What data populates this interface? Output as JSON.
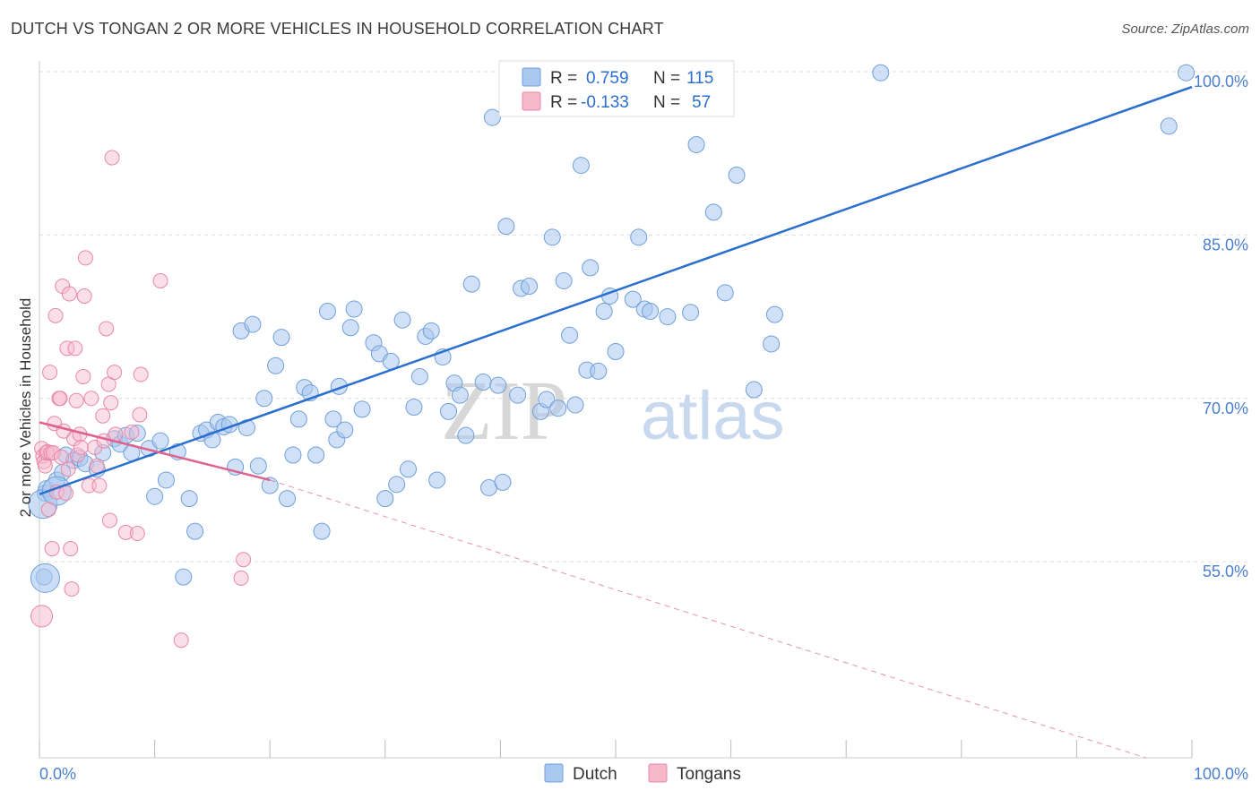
{
  "title": "DUTCH VS TONGAN 2 OR MORE VEHICLES IN HOUSEHOLD CORRELATION CHART",
  "source": "Source: ZipAtlas.com",
  "watermark": {
    "zip": "ZIP",
    "atlas": "atlas"
  },
  "colors": {
    "dutch_fill": "#a9c8f0",
    "dutch_stroke": "#6f9fd8",
    "dutch_line": "#2b6fce",
    "tongan_fill": "#f6b7cb",
    "tongan_stroke": "#e987a8",
    "tongan_line": "#e0608e",
    "tick_text": "#4a7fd0",
    "grid": "#dddddd"
  },
  "legend": {
    "rows": [
      {
        "r_label": "R =",
        "r_value": "0.759",
        "n_label": "N =",
        "n_value": "115"
      },
      {
        "r_label": "R =",
        "r_value": "-0.133",
        "n_label": "N =",
        "n_value": "57"
      }
    ]
  },
  "chart_data": {
    "type": "scatter",
    "title": "DUTCH VS TONGAN 2 OR MORE VEHICLES IN HOUSEHOLD CORRELATION CHART",
    "xlabel": "",
    "ylabel": "2 or more Vehicles in Household",
    "xlim": [
      0,
      100
    ],
    "ylim": [
      37,
      100
    ],
    "x_tick_labels": [
      "0.0%",
      "100.0%"
    ],
    "y_ticks": [
      55,
      70,
      85,
      100
    ],
    "y_tick_labels": [
      "55.0%",
      "70.0%",
      "85.0%",
      "100.0%"
    ],
    "grid": true,
    "series": [
      {
        "name": "Dutch",
        "r": 0.759,
        "n": 115,
        "trend": {
          "x": [
            0,
            100
          ],
          "y": [
            61.2,
            98.6
          ]
        },
        "points": [
          [
            0.5,
            61.3
          ],
          [
            0.6,
            61.7
          ],
          [
            0.4,
            53.6
          ],
          [
            1.5,
            62.5
          ],
          [
            2.0,
            63.2
          ],
          [
            2.3,
            64.8
          ],
          [
            3.0,
            64.3
          ],
          [
            3.5,
            64.5
          ],
          [
            4.0,
            64.0
          ],
          [
            5.0,
            63.5
          ],
          [
            5.5,
            65.0
          ],
          [
            6.5,
            66.3
          ],
          [
            7.0,
            65.8
          ],
          [
            7.5,
            66.6
          ],
          [
            8.0,
            65.0
          ],
          [
            8.5,
            66.8
          ],
          [
            9.5,
            65.4
          ],
          [
            10.0,
            61.0
          ],
          [
            10.5,
            66.1
          ],
          [
            11.0,
            62.5
          ],
          [
            12.0,
            65.1
          ],
          [
            12.5,
            53.6
          ],
          [
            13.0,
            60.8
          ],
          [
            13.5,
            57.8
          ],
          [
            14.0,
            66.8
          ],
          [
            14.5,
            67.1
          ],
          [
            15.0,
            66.2
          ],
          [
            15.5,
            67.8
          ],
          [
            16.0,
            67.4
          ],
          [
            16.5,
            67.6
          ],
          [
            17.0,
            63.7
          ],
          [
            17.5,
            76.2
          ],
          [
            18.0,
            67.3
          ],
          [
            18.5,
            76.8
          ],
          [
            19.0,
            63.8
          ],
          [
            19.5,
            70.0
          ],
          [
            20.0,
            62.0
          ],
          [
            20.5,
            73.0
          ],
          [
            21.0,
            75.6
          ],
          [
            21.5,
            60.8
          ],
          [
            22.0,
            64.8
          ],
          [
            22.5,
            68.1
          ],
          [
            23.0,
            71.0
          ],
          [
            23.5,
            70.5
          ],
          [
            24.0,
            64.8
          ],
          [
            24.5,
            57.8
          ],
          [
            25.0,
            78.0
          ],
          [
            25.5,
            68.1
          ],
          [
            25.8,
            66.2
          ],
          [
            26.0,
            71.1
          ],
          [
            26.5,
            67.1
          ],
          [
            27.0,
            76.5
          ],
          [
            27.3,
            78.2
          ],
          [
            28.0,
            69.0
          ],
          [
            29.0,
            75.1
          ],
          [
            29.5,
            74.1
          ],
          [
            30.0,
            60.8
          ],
          [
            30.5,
            73.4
          ],
          [
            31.0,
            62.1
          ],
          [
            31.5,
            77.2
          ],
          [
            32.0,
            63.5
          ],
          [
            32.5,
            69.2
          ],
          [
            33.0,
            72.0
          ],
          [
            33.5,
            75.7
          ],
          [
            34.0,
            76.2
          ],
          [
            34.5,
            62.5
          ],
          [
            35.0,
            73.8
          ],
          [
            35.5,
            68.8
          ],
          [
            36.0,
            71.4
          ],
          [
            36.5,
            70.3
          ],
          [
            37.0,
            66.6
          ],
          [
            37.5,
            80.5
          ],
          [
            38.5,
            71.5
          ],
          [
            39.0,
            61.8
          ],
          [
            39.3,
            95.8
          ],
          [
            39.8,
            71.2
          ],
          [
            40.2,
            62.3
          ],
          [
            40.5,
            85.8
          ],
          [
            41.5,
            70.3
          ],
          [
            41.8,
            80.1
          ],
          [
            42.5,
            80.3
          ],
          [
            43.5,
            68.8
          ],
          [
            44.0,
            69.9
          ],
          [
            44.5,
            84.8
          ],
          [
            45.0,
            69.1
          ],
          [
            45.5,
            80.8
          ],
          [
            46.0,
            75.8
          ],
          [
            46.5,
            69.4
          ],
          [
            47.0,
            91.4
          ],
          [
            47.5,
            72.6
          ],
          [
            47.8,
            82.0
          ],
          [
            48.5,
            72.5
          ],
          [
            49.0,
            78.0
          ],
          [
            49.5,
            79.4
          ],
          [
            50.0,
            74.3
          ],
          [
            51.5,
            79.1
          ],
          [
            52.0,
            84.8
          ],
          [
            52.5,
            78.2
          ],
          [
            53.0,
            78.0
          ],
          [
            54.5,
            77.5
          ],
          [
            56.5,
            77.9
          ],
          [
            57.0,
            93.3
          ],
          [
            58.5,
            87.1
          ],
          [
            59.5,
            79.7
          ],
          [
            60.5,
            90.5
          ],
          [
            62.0,
            70.8
          ],
          [
            63.5,
            75.0
          ],
          [
            63.8,
            77.7
          ],
          [
            73.0,
            99.9
          ],
          [
            98.0,
            95.0
          ],
          [
            99.5,
            99.9
          ]
        ],
        "big_points": [
          [
            0.5,
            53.5
          ],
          [
            0.3,
            60.3
          ],
          [
            1.5,
            61.5
          ]
        ]
      },
      {
        "name": "Tongans",
        "r": -0.133,
        "n": 57,
        "trend": {
          "x": [
            0,
            20
          ],
          "y": [
            67.8,
            62.5
          ]
        },
        "trend_dashed": {
          "x": [
            20,
            96
          ],
          "y": [
            62.5,
            37.0
          ]
        },
        "points": [
          [
            0.2,
            65.4
          ],
          [
            0.3,
            64.7
          ],
          [
            0.4,
            64.2
          ],
          [
            0.5,
            63.8
          ],
          [
            0.6,
            65.0
          ],
          [
            0.7,
            65.1
          ],
          [
            0.8,
            59.8
          ],
          [
            0.9,
            72.4
          ],
          [
            1.0,
            65.0
          ],
          [
            1.1,
            56.2
          ],
          [
            1.2,
            65.0
          ],
          [
            1.3,
            67.7
          ],
          [
            1.4,
            77.6
          ],
          [
            1.5,
            61.4
          ],
          [
            1.7,
            70.0
          ],
          [
            1.8,
            70.0
          ],
          [
            1.9,
            64.6
          ],
          [
            2.0,
            80.3
          ],
          [
            2.1,
            67.0
          ],
          [
            2.3,
            61.3
          ],
          [
            2.4,
            74.6
          ],
          [
            2.5,
            63.5
          ],
          [
            2.6,
            79.6
          ],
          [
            2.7,
            56.2
          ],
          [
            2.8,
            52.5
          ],
          [
            3.0,
            66.3
          ],
          [
            3.1,
            74.6
          ],
          [
            3.2,
            69.8
          ],
          [
            3.3,
            64.8
          ],
          [
            3.5,
            66.7
          ],
          [
            3.6,
            65.5
          ],
          [
            3.8,
            72.0
          ],
          [
            3.9,
            79.4
          ],
          [
            4.0,
            82.9
          ],
          [
            4.3,
            62.0
          ],
          [
            4.5,
            70.0
          ],
          [
            4.8,
            65.5
          ],
          [
            5.0,
            63.8
          ],
          [
            5.2,
            62.0
          ],
          [
            5.5,
            68.4
          ],
          [
            5.6,
            66.1
          ],
          [
            5.8,
            76.4
          ],
          [
            6.0,
            71.3
          ],
          [
            6.1,
            58.8
          ],
          [
            6.2,
            69.6
          ],
          [
            6.3,
            92.1
          ],
          [
            6.5,
            72.4
          ],
          [
            6.6,
            66.7
          ],
          [
            7.5,
            57.7
          ],
          [
            8.0,
            66.9
          ],
          [
            8.5,
            57.6
          ],
          [
            8.8,
            72.2
          ],
          [
            8.7,
            68.5
          ],
          [
            10.5,
            80.8
          ],
          [
            12.3,
            47.8
          ],
          [
            17.5,
            53.5
          ],
          [
            17.7,
            55.2
          ]
        ],
        "big_points": [
          [
            0.2,
            50.0
          ]
        ]
      }
    ],
    "legend": [
      "Dutch",
      "Tongans"
    ]
  }
}
